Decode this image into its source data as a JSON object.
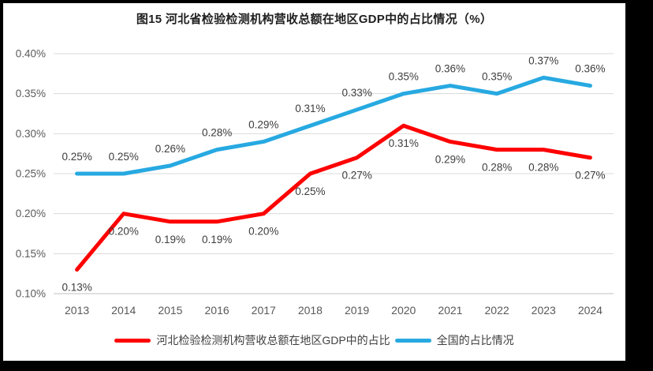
{
  "window": {
    "frame_color": "#000000",
    "panel_background": "#ffffff"
  },
  "title": "图15 河北省检验检测机构营收总额在地区GDP中的占比情况（%）",
  "chart_data": {
    "type": "line",
    "categories": [
      "2013",
      "2014",
      "2015",
      "2016",
      "2017",
      "2018",
      "2019",
      "2020",
      "2021",
      "2022",
      "2023",
      "2024"
    ],
    "series": [
      {
        "key": "hebei",
        "name": "河北检验检测机构营收总额在地区GDP中的占比",
        "color": "#FE0000",
        "values": [
          0.13,
          0.2,
          0.19,
          0.19,
          0.2,
          0.25,
          0.27,
          0.31,
          0.29,
          0.28,
          0.28,
          0.27
        ],
        "point_labels": [
          "0.13%",
          "0.20%",
          "0.19%",
          "0.19%",
          "0.20%",
          "0.25%",
          "0.27%",
          "0.31%",
          "0.29%",
          "0.28%",
          "0.28%",
          "0.27%"
        ],
        "label_position": "below"
      },
      {
        "key": "national",
        "name": "全国的占比情况",
        "color": "#27A9E1",
        "values": [
          0.25,
          0.25,
          0.26,
          0.28,
          0.29,
          0.31,
          0.33,
          0.35,
          0.36,
          0.35,
          0.37,
          0.36
        ],
        "point_labels": [
          "0.25%",
          "0.25%",
          "0.26%",
          "0.28%",
          "0.29%",
          "0.31%",
          "0.33%",
          "0.35%",
          "0.36%",
          "0.35%",
          "0.37%",
          "0.36%"
        ],
        "label_position": "above"
      }
    ],
    "y_axis": {
      "min": 0.1,
      "max": 0.4,
      "step": 0.05,
      "tick_labels": [
        "0.10%",
        "0.15%",
        "0.20%",
        "0.25%",
        "0.30%",
        "0.35%",
        "0.40%"
      ]
    },
    "x_axis_label": "",
    "y_axis_label": "",
    "grid": true,
    "legend_position": "bottom",
    "styles": {
      "grid_color": "#D9D9D9",
      "axis_line_color": "#C0C0C0",
      "tick_color": "#595959",
      "data_label_color": "#3d3d3d"
    }
  }
}
